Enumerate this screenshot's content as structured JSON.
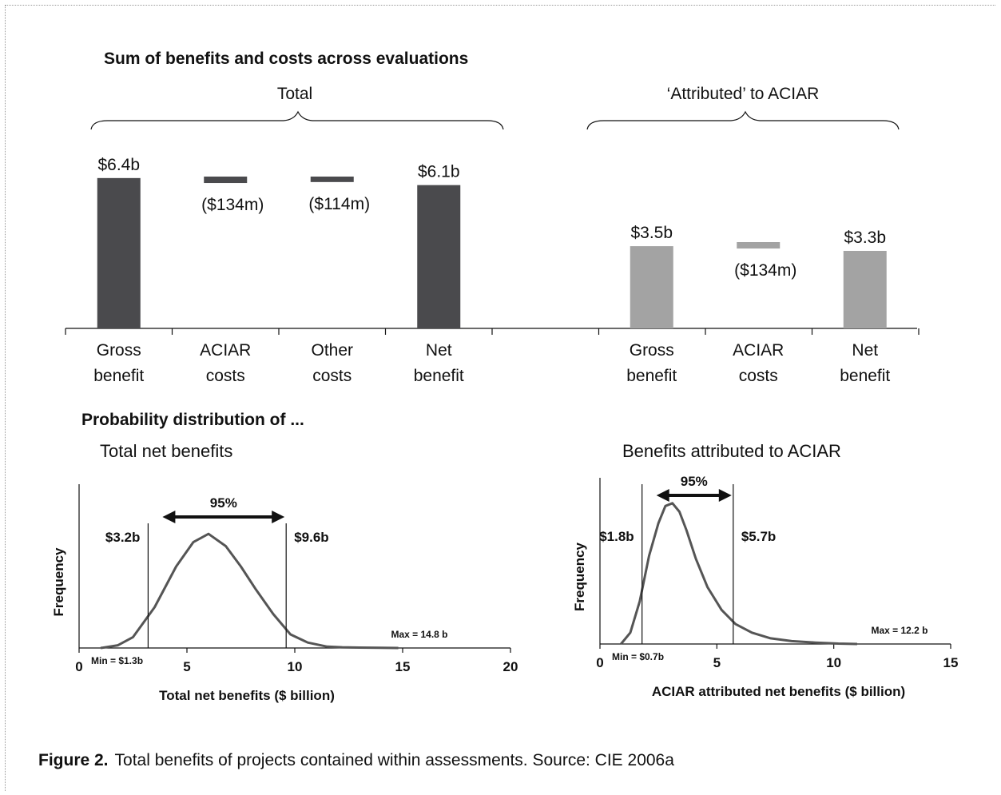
{
  "caption": {
    "figure_label": "Figure 2.",
    "text": "Total benefits of projects contained within assessments. Source: CIE 2006a"
  },
  "chart_data": [
    {
      "type": "bar",
      "title": "Sum of benefits and costs across evaluations",
      "unit": "$ billion",
      "groups": [
        {
          "label": "Total",
          "color": "#4a4a4d",
          "categories": [
            "Gross benefit",
            "ACIAR costs",
            "Other costs",
            "Net benefit"
          ],
          "category_lines": [
            [
              "Gross",
              "benefit"
            ],
            [
              "ACIAR",
              "costs"
            ],
            [
              "Other",
              "costs"
            ],
            [
              "Net",
              "benefit"
            ]
          ],
          "values": [
            6.4,
            -0.134,
            -0.114,
            6.1
          ],
          "data_labels": [
            "$6.4b",
            "($134m)",
            "($114m)",
            "$6.1b"
          ]
        },
        {
          "label": "‘Attributed’ to ACIAR",
          "color": "#a3a3a3",
          "categories": [
            "Gross benefit",
            "ACIAR costs",
            "Net benefit"
          ],
          "category_lines": [
            [
              "Gross",
              "benefit"
            ],
            [
              "ACIAR",
              "costs"
            ],
            [
              "Net",
              "benefit"
            ]
          ],
          "values": [
            3.5,
            -0.134,
            3.3
          ],
          "data_labels": [
            "$3.5b",
            "($134m)",
            "$3.3b"
          ]
        }
      ]
    },
    {
      "type": "line",
      "section_title": "Probability distribution of ...",
      "title": "Total net benefits",
      "xlabel": "Total net benefits ($ billion)",
      "ylabel": "Frequency",
      "xlim": [
        0,
        20
      ],
      "xticks": [
        0,
        5,
        10,
        15,
        20
      ],
      "ylim": [
        0,
        1
      ],
      "x": [
        1.0,
        1.8,
        2.5,
        3.5,
        4.5,
        5.3,
        6.0,
        6.8,
        7.5,
        8.2,
        9.0,
        9.8,
        10.6,
        11.5,
        12.2,
        13.0,
        14.0,
        14.8
      ],
      "y": [
        0.0,
        0.02,
        0.08,
        0.3,
        0.6,
        0.78,
        0.84,
        0.75,
        0.6,
        0.43,
        0.25,
        0.1,
        0.04,
        0.01,
        0.005,
        0.003,
        0.002,
        0.0
      ],
      "ci_lower": 3.2,
      "ci_upper": 9.6,
      "ci_lower_label": "$3.2b",
      "ci_upper_label": "$9.6b",
      "ci_label": "95%",
      "min_label": "Min = $1.3b",
      "max_label": "Max = 14.8 b"
    },
    {
      "type": "line",
      "title": "Benefits attributed to ACIAR",
      "xlabel": "ACIAR attributed net benefits ($ billion)",
      "ylabel": "Frequency",
      "xlim": [
        0,
        15
      ],
      "xticks": [
        0,
        5,
        10,
        15
      ],
      "ylim": [
        0,
        1
      ],
      "x": [
        0.9,
        1.3,
        1.7,
        2.1,
        2.5,
        2.8,
        3.1,
        3.4,
        3.7,
        4.1,
        4.6,
        5.2,
        5.8,
        6.5,
        7.3,
        8.2,
        9.2,
        10.2,
        11.0
      ],
      "y": [
        0.0,
        0.08,
        0.3,
        0.62,
        0.85,
        0.97,
        0.99,
        0.93,
        0.8,
        0.6,
        0.4,
        0.24,
        0.14,
        0.08,
        0.04,
        0.02,
        0.01,
        0.003,
        0.0
      ],
      "ci_lower": 1.8,
      "ci_upper": 5.7,
      "ci_lower_label": "$1.8b",
      "ci_upper_label": "$5.7b",
      "ci_label": "95%",
      "min_label": "Min = $0.7b",
      "max_label": "Max = 12.2 b"
    }
  ]
}
